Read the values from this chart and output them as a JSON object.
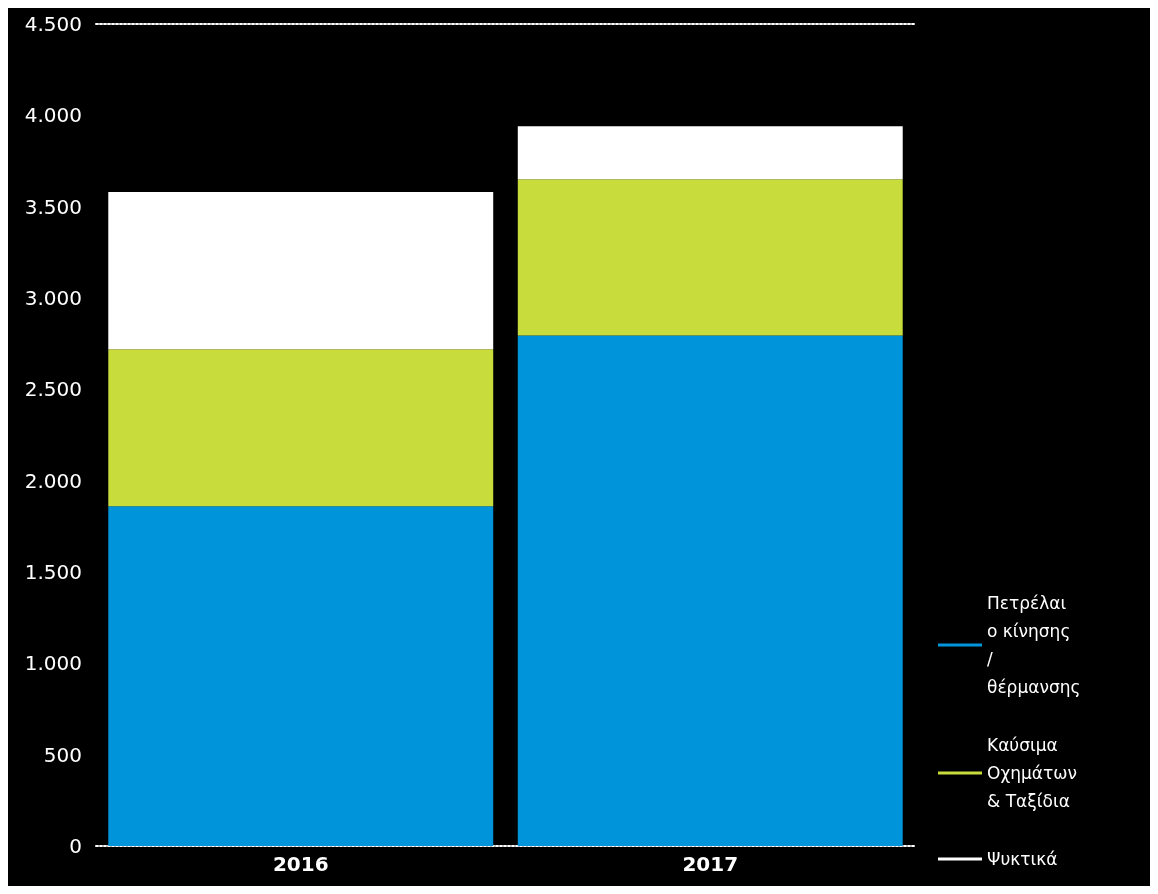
{
  "chart_data": {
    "type": "bar",
    "stacked": true,
    "categories": [
      "2016",
      "2017"
    ],
    "series": [
      {
        "name": "Πετρέλαιο κίνησης / θέρμανσης",
        "color": "#0095db",
        "values": [
          1860,
          2795
        ]
      },
      {
        "name": "Καύσιμα Οχημάτων & Ταξίδια",
        "color": "#c8dc3c",
        "values": [
          860,
          855
        ]
      },
      {
        "name": "Ψυκτικά",
        "color": "#ffffff",
        "values": [
          860,
          290
        ]
      }
    ],
    "ylim": [
      0,
      4500
    ],
    "yticks": [
      0,
      500,
      {
        "value": 1000,
        "label": "1.000"
      },
      {
        "value": 1500,
        "label": "1.500"
      },
      {
        "value": 2000,
        "label": "2.000"
      },
      {
        "value": 2500,
        "label": "2.500"
      },
      {
        "value": 3000,
        "label": "3.000"
      },
      {
        "value": 3500,
        "label": "3.500"
      },
      {
        "value": 4000,
        "label": "4.000"
      },
      {
        "value": 4500,
        "label": "4.500"
      }
    ],
    "grid": false,
    "legend": "bottom right"
  }
}
